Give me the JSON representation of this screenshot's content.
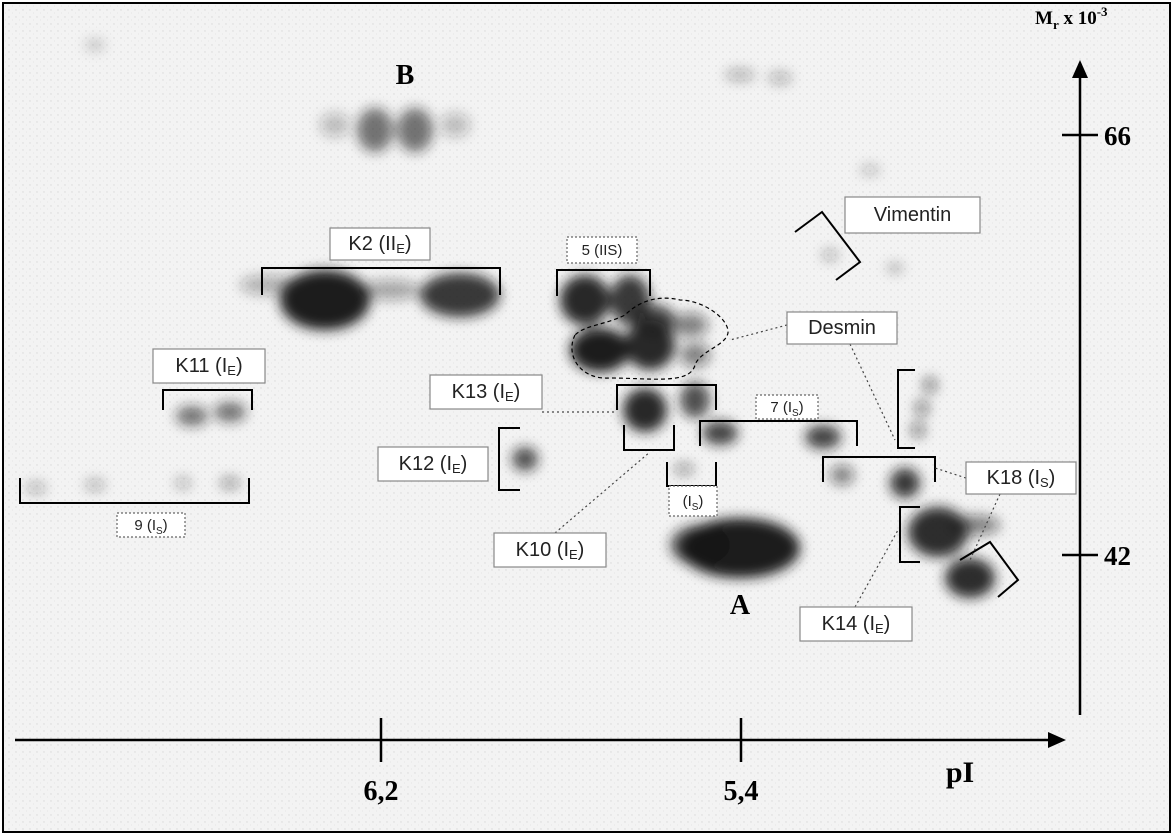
{
  "figure": {
    "spot_labels": {
      "B": "B",
      "A": "A"
    },
    "axis_y": {
      "label": {
        "main": "M",
        "sub": "r",
        "mid": " x 10",
        "sup": "-3"
      },
      "ticks": [
        "66",
        "42"
      ]
    },
    "axis_x": {
      "label": "pI",
      "ticks": [
        "6,2",
        "5,4"
      ]
    },
    "annotations": [
      {
        "text": "K2 (II",
        "sub": "E",
        "tail": ")"
      },
      {
        "text": "5 (IIS)"
      },
      {
        "text": "Vimentin"
      },
      {
        "text": "Desmin"
      },
      {
        "text": "K11 (I",
        "sub": "E",
        "tail": ")"
      },
      {
        "text": "K13  (I",
        "sub": "E",
        "tail": ")"
      },
      {
        "text": "7 (I",
        "sub": "S",
        "tail": ")"
      },
      {
        "text": "K12 (I",
        "sub": "E",
        "tail": ")"
      },
      {
        "text": "(I",
        "sub": "S",
        "tail": ")"
      },
      {
        "text": "K18 (I",
        "sub": "S",
        "tail": ")"
      },
      {
        "text": "9 (I",
        "sub": "S",
        "tail": ")"
      },
      {
        "text": "K10 (I",
        "sub": "E",
        "tail": ")"
      },
      {
        "text": "K14 (I",
        "sub": "E",
        "tail": ")"
      }
    ]
  }
}
